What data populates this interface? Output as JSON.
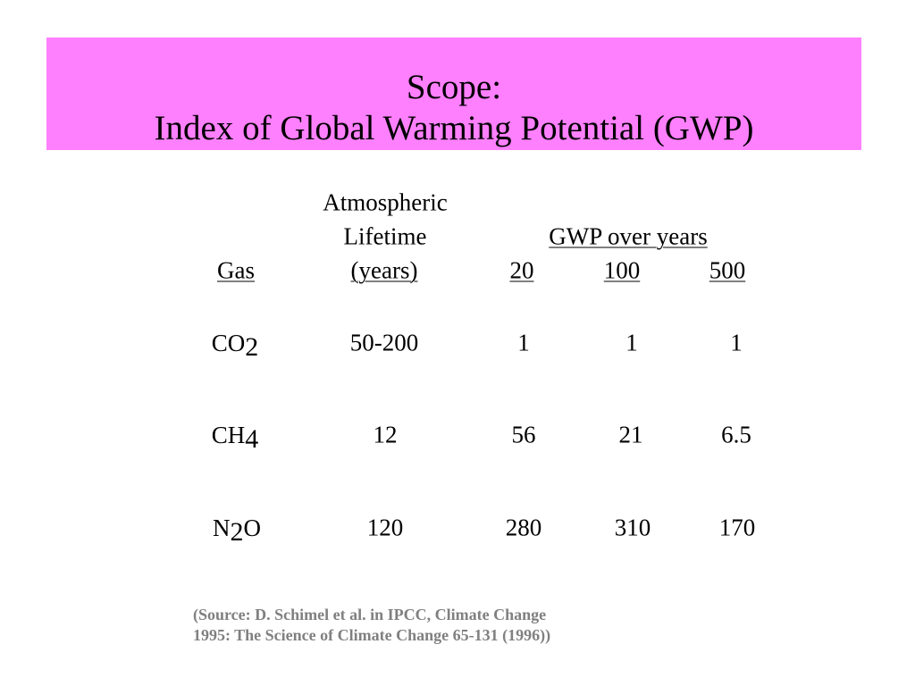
{
  "slide": {
    "title_line1": "Scope:",
    "title_line2": "Index of Global Warming Potential (GWP)",
    "title_bg_color": "#ff80ff"
  },
  "table": {
    "header": {
      "lifetime_line1": "Atmospheric",
      "lifetime_line2": "Lifetime",
      "lifetime_line3": "(years)",
      "gas": "Gas",
      "gwp_group": "GWP over years",
      "gwp_20": "20",
      "gwp_100": "100",
      "gwp_500": "500"
    },
    "rows": [
      {
        "gas_main": "CO",
        "gas_sub": "2",
        "gas_tail": "",
        "lifetime": "50-200",
        "gwp20": "1",
        "gwp100": "1",
        "gwp500": "1"
      },
      {
        "gas_main": "CH",
        "gas_sub": "4",
        "gas_tail": "",
        "lifetime": "12",
        "gwp20": "56",
        "gwp100": "21",
        "gwp500": "6.5"
      },
      {
        "gas_main": "N",
        "gas_sub": "2",
        "gas_tail": "O",
        "lifetime": "120",
        "gwp20": "280",
        "gwp100": "310",
        "gwp500": "170"
      }
    ]
  },
  "source": {
    "line1": "(Source:  D. Schimel et al. in IPCC, Climate Change",
    "line2": "1995: The Science of Climate Change 65-131 (1996))"
  }
}
